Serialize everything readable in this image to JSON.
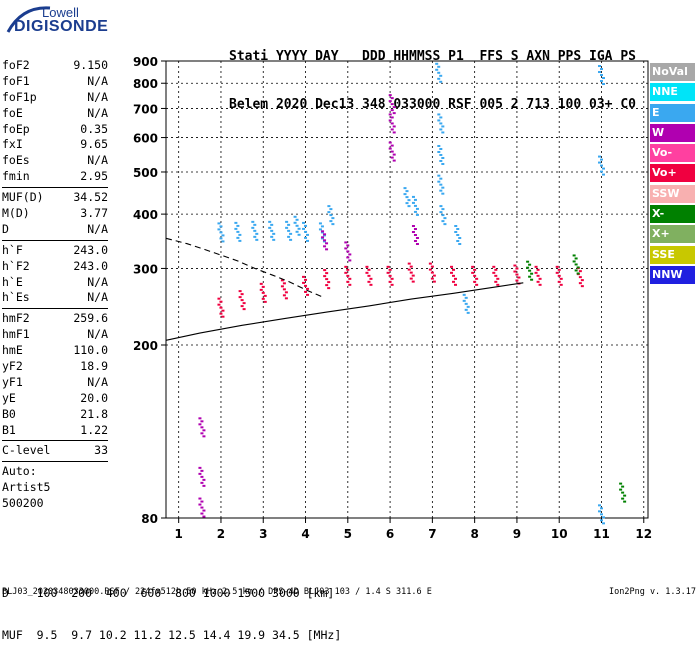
{
  "logo": {
    "line1": "Lowell",
    "line2": "DIGISONDE"
  },
  "header": {
    "line1": "Stati YYYY DAY   DDD HHMMSS P1  FFS S AXN PPS IGA PS",
    "line2": "Belem 2020 Dec13 348 033000 RSF 005 2 713 100 03+ C0"
  },
  "params": [
    {
      "name": "foF2",
      "value": "9.150"
    },
    {
      "name": "foF1",
      "value": "N/A"
    },
    {
      "name": "foF1p",
      "value": "N/A"
    },
    {
      "name": "foE",
      "value": "N/A"
    },
    {
      "name": "foEp",
      "value": "0.35"
    },
    {
      "name": "fxI",
      "value": "9.65"
    },
    {
      "name": "foEs",
      "value": "N/A"
    },
    {
      "name": "fmin",
      "value": "2.95"
    },
    {
      "sep": true
    },
    {
      "name": "MUF(D)",
      "value": "34.52"
    },
    {
      "name": "M(D)",
      "value": "3.77"
    },
    {
      "name": "D",
      "value": "N/A"
    },
    {
      "sep": true
    },
    {
      "name": "h`F",
      "value": "243.0"
    },
    {
      "name": "h`F2",
      "value": "243.0"
    },
    {
      "name": "h`E",
      "value": "N/A"
    },
    {
      "name": "h`Es",
      "value": "N/A"
    },
    {
      "sep": true
    },
    {
      "name": "hmF2",
      "value": "259.6"
    },
    {
      "name": "hmF1",
      "value": "N/A"
    },
    {
      "name": "hmE",
      "value": "110.0"
    },
    {
      "name": "yF2",
      "value": "18.9"
    },
    {
      "name": "yF1",
      "value": "N/A"
    },
    {
      "name": "yE",
      "value": "20.0"
    },
    {
      "name": "B0",
      "value": "21.8"
    },
    {
      "name": "B1",
      "value": "1.22"
    },
    {
      "sep": true
    },
    {
      "name": "C-level",
      "value": "33"
    },
    {
      "sep": true
    },
    {
      "text": "Auto:"
    },
    {
      "text": "Artist5"
    },
    {
      "text": "500200"
    }
  ],
  "legend": [
    {
      "label": "NoVal",
      "color": "#a8a8a8"
    },
    {
      "label": "NNE",
      "color": "#00e4f8"
    },
    {
      "label": "E",
      "color": "#3aa8f0"
    },
    {
      "label": "W",
      "color": "#b000b0"
    },
    {
      "label": "Vo-",
      "color": "#ff40a0"
    },
    {
      "label": "Vo+",
      "color": "#f00040"
    },
    {
      "label": "SSW",
      "color": "#f8b0b0"
    },
    {
      "label": "X-",
      "color": "#008000"
    },
    {
      "label": "X+",
      "color": "#80b060"
    },
    {
      "label": "SSE",
      "color": "#c8c800"
    },
    {
      "label": "NNW",
      "color": "#2020e0"
    }
  ],
  "dmuf": {
    "d_line": "D    100  200  400  600  800 1000 1500 3000 [km]",
    "muf_line": "MUF  9.5  9.7 10.2 11.2 12.5 14.4 19.9 34.5 [MHz]"
  },
  "footer": {
    "left": "BLJ03_2020348033000.RSF / 224fx512h 50 kHz 2.5 km / DPS-4D BLJ03 103 / 1.4 S 311.6 E",
    "right": "Ion2Png v. 1.3.17"
  },
  "chart_data": {
    "type": "scatter",
    "title": "",
    "xlabel": "",
    "ylabel": "",
    "xlim": [
      0.7,
      12.1
    ],
    "ylim": [
      80,
      900
    ],
    "y_scale": "log",
    "x_ticks": [
      1,
      2,
      3,
      4,
      5,
      6,
      7,
      8,
      9,
      10,
      11,
      12
    ],
    "y_ticks": [
      80,
      200,
      300,
      400,
      500,
      600,
      700,
      800,
      900
    ],
    "grid": true,
    "series": [
      {
        "name": "E",
        "color": "#3aa8f0",
        "points": [
          {
            "x": 2.0,
            "y": 365
          },
          {
            "x": 2.4,
            "y": 366
          },
          {
            "x": 2.8,
            "y": 368
          },
          {
            "x": 3.2,
            "y": 368
          },
          {
            "x": 3.6,
            "y": 368
          },
          {
            "x": 4.0,
            "y": 366
          },
          {
            "x": 4.4,
            "y": 365
          },
          {
            "x": 3.8,
            "y": 378
          },
          {
            "x": 4.6,
            "y": 400
          },
          {
            "x": 7.15,
            "y": 850
          },
          {
            "x": 7.2,
            "y": 650
          },
          {
            "x": 7.2,
            "y": 550
          },
          {
            "x": 7.2,
            "y": 470
          },
          {
            "x": 7.25,
            "y": 400
          },
          {
            "x": 6.4,
            "y": 440
          },
          {
            "x": 6.6,
            "y": 420
          },
          {
            "x": 7.6,
            "y": 360
          },
          {
            "x": 7.8,
            "y": 250
          },
          {
            "x": 11.0,
            "y": 840
          },
          {
            "x": 11.0,
            "y": 520
          },
          {
            "x": 11.0,
            "y": 82
          }
        ]
      },
      {
        "name": "Vo+",
        "color": "#f00040",
        "points": [
          {
            "x": 2.0,
            "y": 245
          },
          {
            "x": 2.5,
            "y": 255
          },
          {
            "x": 3.0,
            "y": 265
          },
          {
            "x": 3.5,
            "y": 270
          },
          {
            "x": 4.0,
            "y": 275
          },
          {
            "x": 4.5,
            "y": 285
          },
          {
            "x": 5.0,
            "y": 290
          },
          {
            "x": 5.5,
            "y": 290
          },
          {
            "x": 6.0,
            "y": 290
          },
          {
            "x": 6.5,
            "y": 295
          },
          {
            "x": 7.0,
            "y": 295
          },
          {
            "x": 7.5,
            "y": 290
          },
          {
            "x": 8.0,
            "y": 290
          },
          {
            "x": 8.5,
            "y": 290
          },
          {
            "x": 9.0,
            "y": 292
          },
          {
            "x": 9.5,
            "y": 290
          },
          {
            "x": 10.0,
            "y": 290
          },
          {
            "x": 10.5,
            "y": 288
          }
        ]
      },
      {
        "name": "W",
        "color": "#b000b0",
        "points": [
          {
            "x": 4.45,
            "y": 350
          },
          {
            "x": 5.0,
            "y": 330
          },
          {
            "x": 6.05,
            "y": 720
          },
          {
            "x": 6.05,
            "y": 650
          },
          {
            "x": 6.05,
            "y": 560
          },
          {
            "x": 6.6,
            "y": 360
          },
          {
            "x": 1.55,
            "y": 130
          },
          {
            "x": 1.55,
            "y": 100
          },
          {
            "x": 1.55,
            "y": 85
          }
        ]
      },
      {
        "name": "X-",
        "color": "#008000",
        "points": [
          {
            "x": 9.3,
            "y": 298
          },
          {
            "x": 10.4,
            "y": 308
          },
          {
            "x": 11.5,
            "y": 92
          }
        ]
      }
    ],
    "curves": [
      {
        "name": "",
        "style": "dashed",
        "x": [
          0.7,
          1.2,
          1.6,
          2.0,
          2.4,
          2.8,
          3.2,
          3.6,
          4.0,
          4.4
        ],
        "y": [
          352,
          342,
          332,
          322,
          312,
          300,
          290,
          280,
          268,
          258
        ]
      },
      {
        "name": "",
        "style": "solid",
        "x": [
          0.7,
          1.5,
          2.5,
          3.5,
          4.5,
          5.5,
          6.5,
          7.5,
          8.5,
          9.15
        ],
        "y": [
          205,
          213,
          222,
          230,
          238,
          246,
          255,
          263,
          272,
          278
        ]
      }
    ]
  }
}
